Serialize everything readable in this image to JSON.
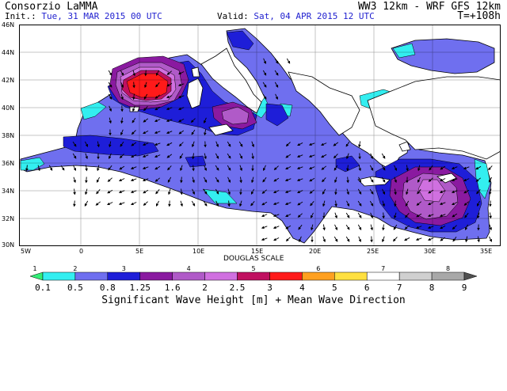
{
  "header": {
    "org": "Consorzio LaMMA",
    "model": "WW3 12km - WRF GFS 12km",
    "init_label": "Init.:",
    "init_value": "Tue, 31 MAR 2015  00 UTC",
    "valid_label": "Valid:",
    "valid_value": "Sat, 04 APR 2015  12 UTC",
    "lead": "T=+108h"
  },
  "map": {
    "lat_labels": [
      "46N",
      "44N",
      "42N",
      "40N",
      "38N",
      "36N",
      "34N",
      "32N",
      "30N"
    ],
    "lon_labels": [
      "5W",
      "0",
      "5E",
      "10E",
      "15E",
      "20E",
      "25E",
      "30E",
      "35E"
    ],
    "colors": {
      "land": "#ffffff",
      "coast": "#000000",
      "sea_0_5": "#33eef0",
      "sea_0_8": "#6f6fef",
      "sea_1_25": "#1e1ed8",
      "sea_1_6": "#8a1aa0",
      "sea_2": "#b05ac8",
      "sea_2_5": "#d070e0",
      "sea_3": "#c01060",
      "sea_4": "#ff1a1a"
    }
  },
  "legend": {
    "douglas_title": "DOUGLAS SCALE",
    "douglas_numbers": [
      "1",
      "2",
      "3",
      "4",
      "5",
      "6",
      "7",
      "8"
    ],
    "bins": [
      "0.1",
      "0.5",
      "0.8",
      "1.25",
      "1.6",
      "2",
      "2.5",
      "3",
      "4",
      "5",
      "6",
      "7",
      "8",
      "9"
    ],
    "colors": [
      "#33ee77",
      "#33eef0",
      "#6f6fef",
      "#1e1ed8",
      "#8a1aa0",
      "#b05ac8",
      "#d070e0",
      "#c01060",
      "#ff1a1a",
      "#ffa020",
      "#ffe040",
      "#ffffff",
      "#d0d0d0",
      "#a8a8a8",
      "#505050"
    ],
    "title": "Significant Wave Height [m] + Mean Wave Direction"
  }
}
